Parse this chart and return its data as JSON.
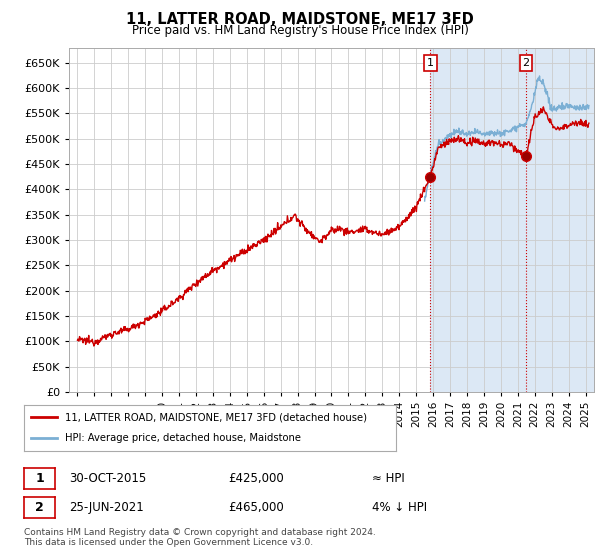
{
  "title": "11, LATTER ROAD, MAIDSTONE, ME17 3FD",
  "subtitle": "Price paid vs. HM Land Registry's House Price Index (HPI)",
  "ylim": [
    0,
    680000
  ],
  "yticks": [
    0,
    50000,
    100000,
    150000,
    200000,
    250000,
    300000,
    350000,
    400000,
    450000,
    500000,
    550000,
    600000,
    650000
  ],
  "hpi_color": "#7bafd4",
  "price_color": "#cc0000",
  "bg_color": "#ffffff",
  "highlight_bg": "#dce8f5",
  "marker1_x": 2015.83,
  "marker1_y": 425000,
  "marker2_x": 2021.48,
  "marker2_y": 465000,
  "legend_line1": "11, LATTER ROAD, MAIDSTONE, ME17 3FD (detached house)",
  "legend_line2": "HPI: Average price, detached house, Maidstone",
  "footer": "Contains HM Land Registry data © Crown copyright and database right 2024.\nThis data is licensed under the Open Government Licence v3.0.",
  "xlim_left": 1994.5,
  "xlim_right": 2025.5
}
